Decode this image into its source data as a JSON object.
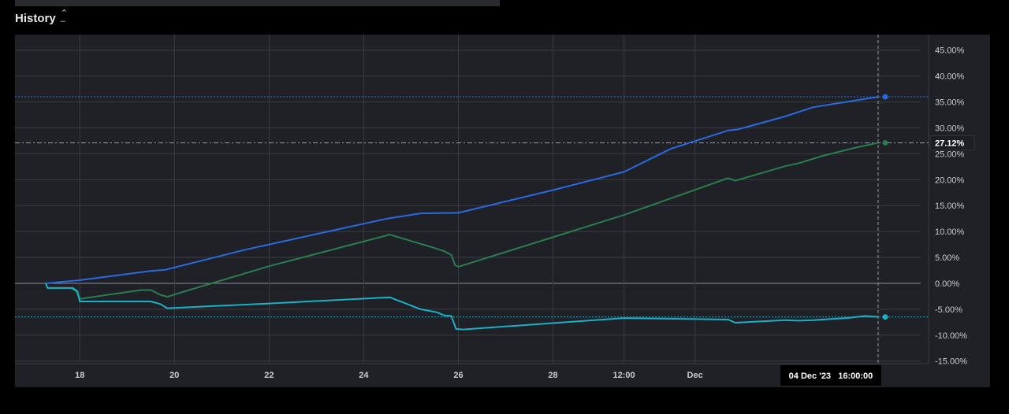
{
  "header": {
    "title": "History",
    "collapse_icon": "chevron-up-icon"
  },
  "chart_data": {
    "type": "line",
    "title": "",
    "xlabel": "",
    "ylabel": "",
    "x_ticks": [
      {
        "day": 18,
        "label": "18"
      },
      {
        "day": 20,
        "label": "20"
      },
      {
        "day": 22,
        "label": "22"
      },
      {
        "day": 24,
        "label": "24"
      },
      {
        "day": 26,
        "label": "26"
      },
      {
        "day": 28,
        "label": "28"
      },
      {
        "day": 29.5,
        "label": "12:00"
      },
      {
        "day": 31,
        "label": "Dec"
      }
    ],
    "y_ticks": [
      {
        "value": 45,
        "label": "45.00%"
      },
      {
        "value": 40,
        "label": "40.00%"
      },
      {
        "value": 35,
        "label": "35.00%"
      },
      {
        "value": 30,
        "label": "30.00%"
      },
      {
        "value": 25,
        "label": "25.00%"
      },
      {
        "value": 20,
        "label": "20.00%"
      },
      {
        "value": 15,
        "label": "15.00%"
      },
      {
        "value": 10,
        "label": "10.00%"
      },
      {
        "value": 5,
        "label": "5.00%"
      },
      {
        "value": 0,
        "label": "0.00%"
      },
      {
        "value": -5,
        "label": "-5.00%"
      },
      {
        "value": -10,
        "label": "-10.00%"
      },
      {
        "value": -15,
        "label": "-15.00%"
      }
    ],
    "xlim": [
      16.63,
      35.77
    ],
    "ylim": [
      -15.5,
      48
    ],
    "grid": true,
    "crosshair": {
      "day": 34.87,
      "label": "04 Dec '23   16:00:00"
    },
    "price_label": {
      "value": 27.12,
      "label": "27.12%",
      "color": "#2a7d50"
    },
    "series": [
      {
        "color": "#2a6ae0",
        "points": [
          [
            17.28,
            0
          ],
          [
            18,
            0.6
          ],
          [
            19.5,
            2.4
          ],
          [
            19.8,
            2.6
          ],
          [
            21.5,
            6.5
          ],
          [
            23,
            9.5
          ],
          [
            24.5,
            12.5
          ],
          [
            25.2,
            13.5
          ],
          [
            26,
            13.6
          ],
          [
            28,
            18
          ],
          [
            29.5,
            21.5
          ],
          [
            30.5,
            26
          ],
          [
            31.7,
            29.5
          ],
          [
            31.9,
            29.7
          ],
          [
            32.9,
            32.2
          ],
          [
            33.5,
            34
          ],
          [
            34.87,
            36
          ]
        ]
      },
      {
        "color": "#2a7d50",
        "points": [
          [
            17.28,
            0
          ],
          [
            17.32,
            -0.9
          ],
          [
            17.8,
            -0.9
          ],
          [
            17.92,
            -1.5
          ],
          [
            18,
            -3
          ],
          [
            19.3,
            -1.3
          ],
          [
            19.5,
            -1.3
          ],
          [
            19.7,
            -2.2
          ],
          [
            19.85,
            -2.6
          ],
          [
            20.2,
            -1.6
          ],
          [
            22,
            3.3
          ],
          [
            24.55,
            9.4
          ],
          [
            25.5,
            6.8
          ],
          [
            25.7,
            6.2
          ],
          [
            25.85,
            5.5
          ],
          [
            25.93,
            3.5
          ],
          [
            26,
            3.2
          ],
          [
            29.5,
            13.2
          ],
          [
            31.7,
            20.3
          ],
          [
            31.85,
            19.8
          ],
          [
            32.9,
            22.6
          ],
          [
            33.2,
            23.2
          ],
          [
            33.7,
            24.6
          ],
          [
            34.4,
            26.2
          ],
          [
            34.87,
            27.12
          ]
        ]
      },
      {
        "color": "#1ab0c8",
        "points": [
          [
            17.28,
            0
          ],
          [
            17.32,
            -0.9
          ],
          [
            17.85,
            -0.9
          ],
          [
            17.95,
            -1.5
          ],
          [
            18,
            -3.5
          ],
          [
            19.5,
            -3.5
          ],
          [
            19.7,
            -4
          ],
          [
            19.85,
            -4.8
          ],
          [
            22,
            -3.9
          ],
          [
            24.55,
            -2.7
          ],
          [
            25.2,
            -5
          ],
          [
            25.55,
            -5.6
          ],
          [
            25.7,
            -6.2
          ],
          [
            25.85,
            -6.3
          ],
          [
            25.95,
            -8.8
          ],
          [
            26.1,
            -8.9
          ],
          [
            29.5,
            -6.7
          ],
          [
            31.7,
            -7
          ],
          [
            31.85,
            -7.6
          ],
          [
            32.9,
            -7.1
          ],
          [
            33.2,
            -7.2
          ],
          [
            33.5,
            -7.1
          ],
          [
            34.2,
            -6.7
          ],
          [
            34.6,
            -6.3
          ],
          [
            34.87,
            -6.5
          ]
        ]
      }
    ]
  }
}
